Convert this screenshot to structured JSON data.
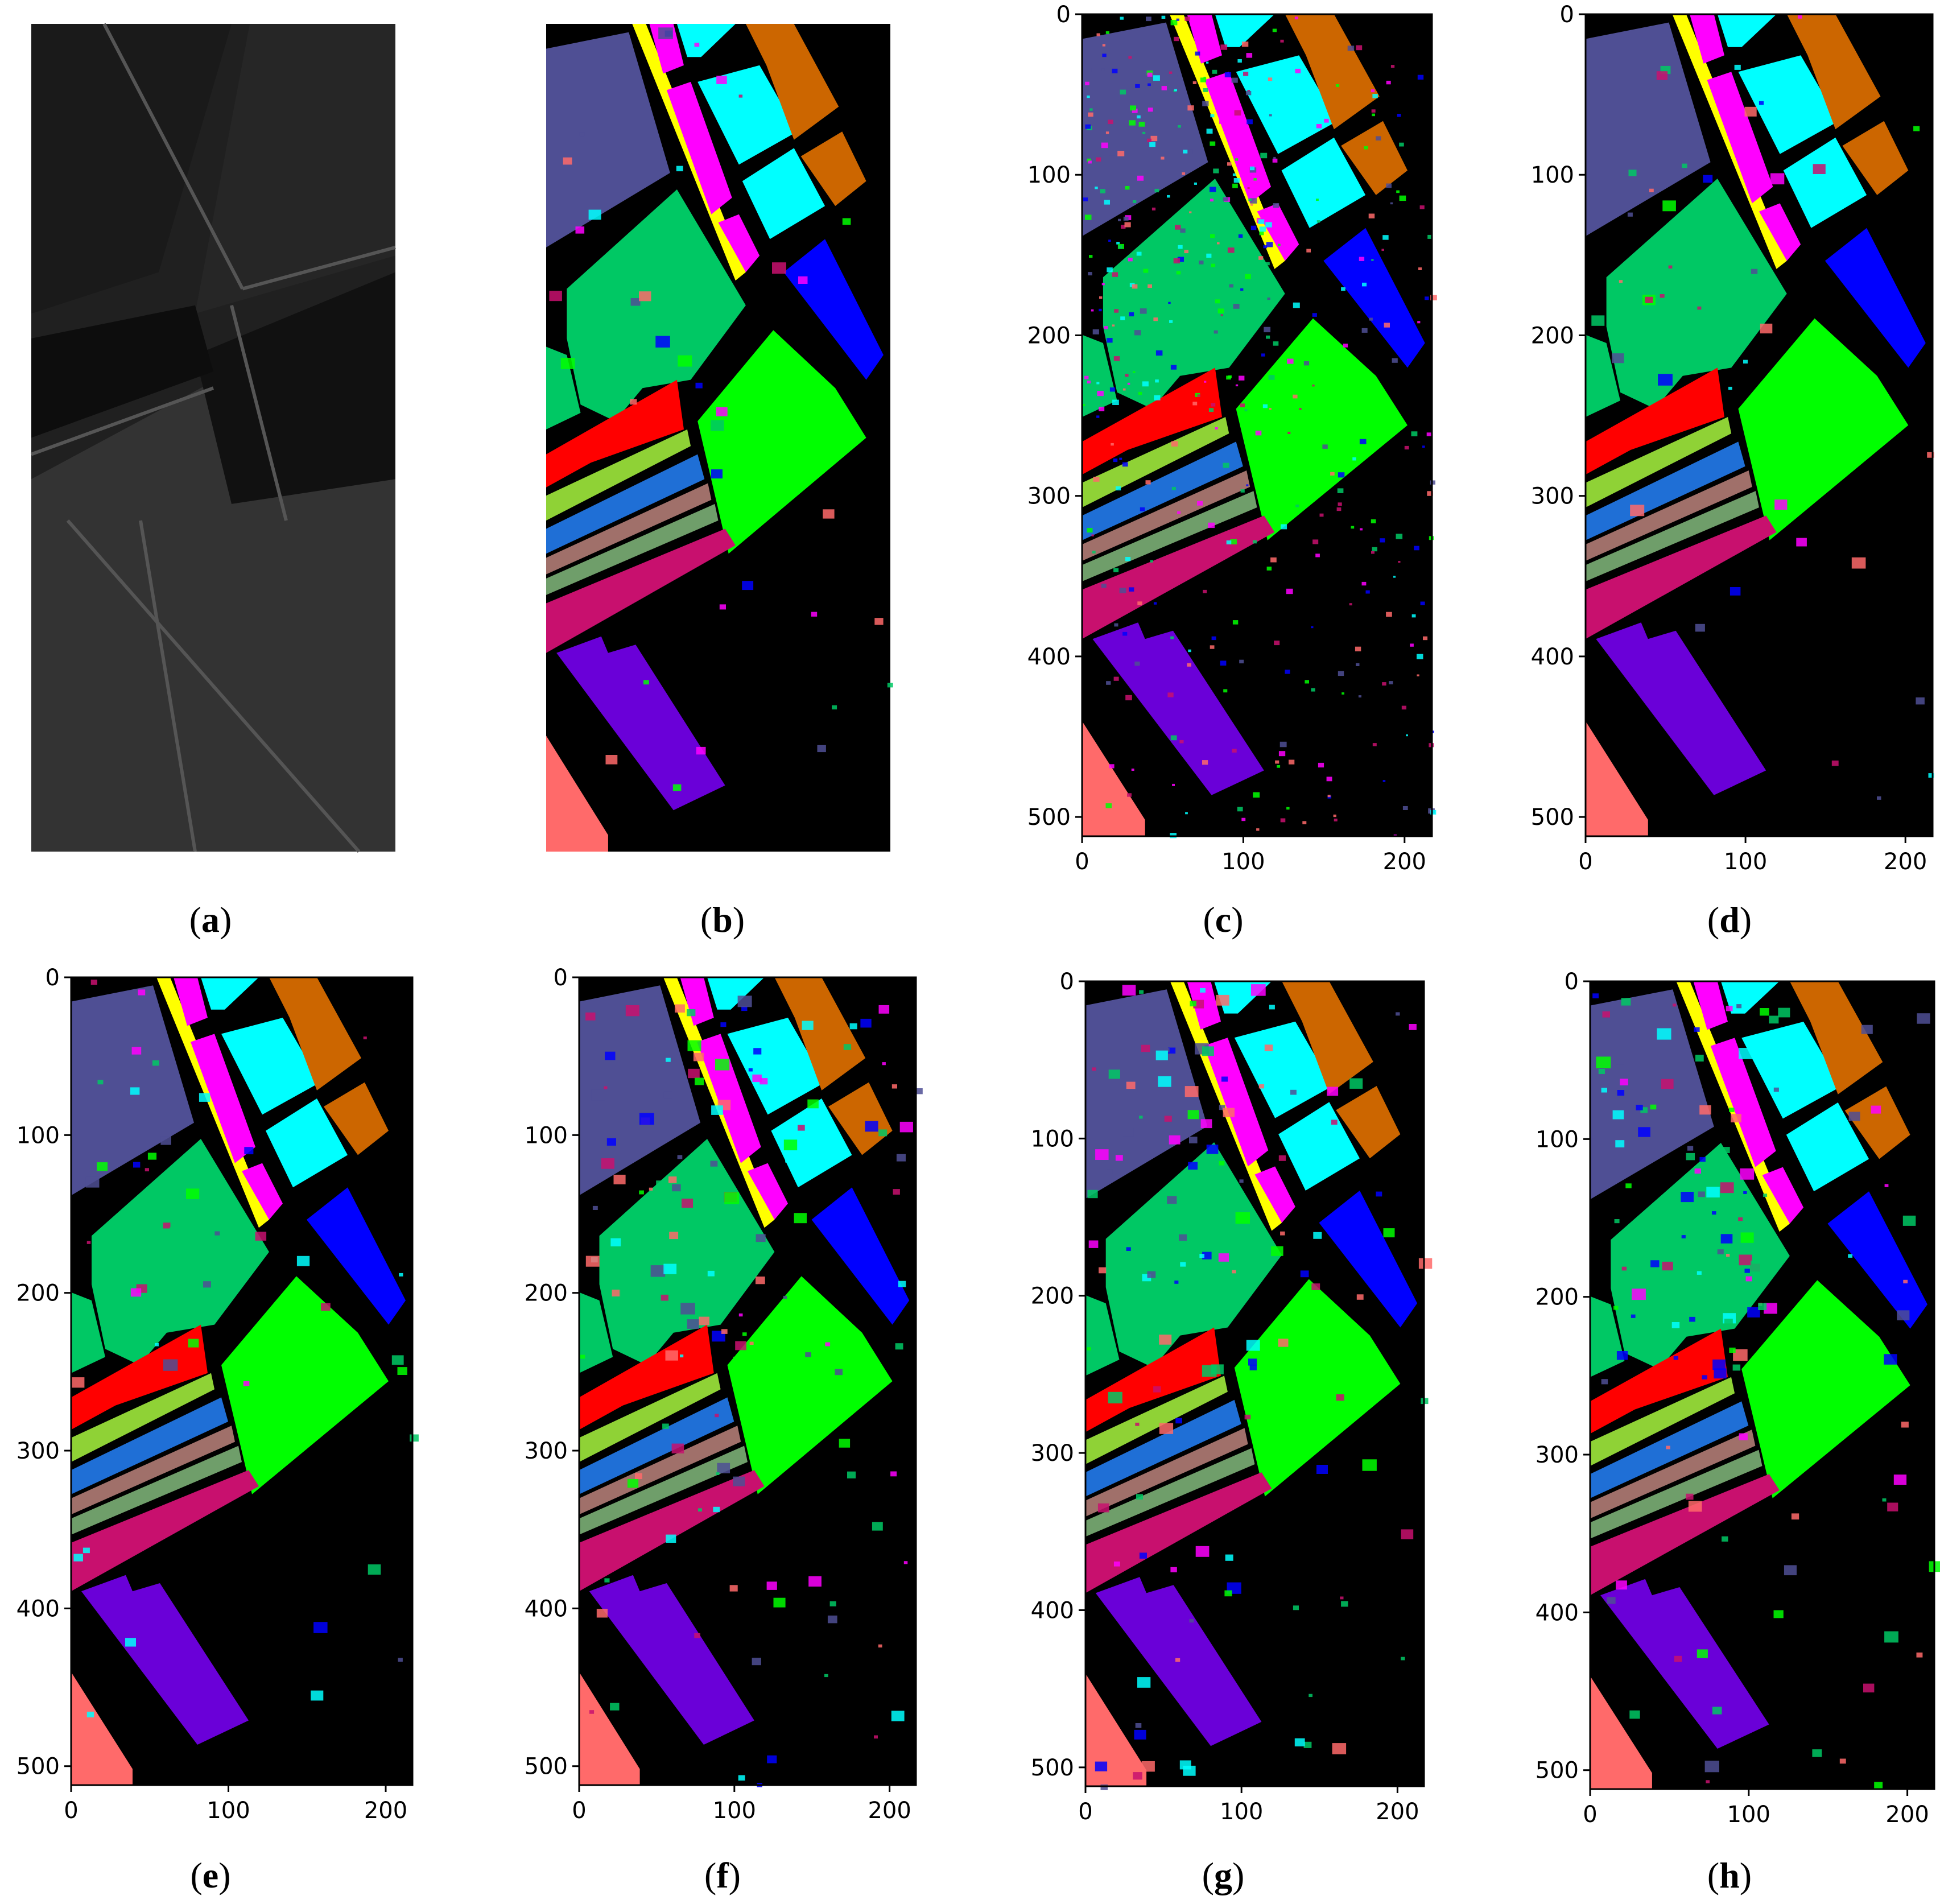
{
  "figure": {
    "panels": [
      {
        "id": "a",
        "type": "grayscale-image",
        "caption": "a",
        "axes": false
      },
      {
        "id": "b",
        "type": "ground-truth-map",
        "caption": "b",
        "axes": false
      },
      {
        "id": "c",
        "type": "classification-map",
        "caption": "c",
        "axes": true,
        "noise": "heavy"
      },
      {
        "id": "d",
        "type": "classification-map",
        "caption": "d",
        "axes": true,
        "noise": "light"
      },
      {
        "id": "e",
        "type": "classification-map",
        "caption": "e",
        "axes": true,
        "noise": "light"
      },
      {
        "id": "f",
        "type": "classification-map",
        "caption": "f",
        "axes": true,
        "noise": "medium"
      },
      {
        "id": "g",
        "type": "classification-map",
        "caption": "g",
        "axes": true,
        "noise": "medium"
      },
      {
        "id": "h",
        "type": "classification-map",
        "caption": "h",
        "axes": true,
        "noise": "medium"
      }
    ],
    "axes": {
      "x_ticks": [
        "0",
        "100",
        "200"
      ],
      "y_ticks": [
        "0",
        "100",
        "200",
        "300",
        "400",
        "500"
      ],
      "x_range": [
        0,
        217
      ],
      "y_range": [
        0,
        512
      ]
    },
    "class_colors": {
      "background": "#000000",
      "slate": "#4f4f94",
      "green": "#00c864",
      "yellow": "#ffff00",
      "magenta": "#ff00ff",
      "cyan": "#00ffff",
      "orange": "#cc6600",
      "blue": "#0000ff",
      "lime": "#00ff00",
      "red": "#ff0000",
      "olive": "#8fd236",
      "steel_blue": "#1f6fd6",
      "brown_rose": "#a0706a",
      "sage": "#6f9e6a",
      "crimson": "#c8106e",
      "purple": "#6a00d8",
      "salmon": "#ff6a6a"
    }
  }
}
